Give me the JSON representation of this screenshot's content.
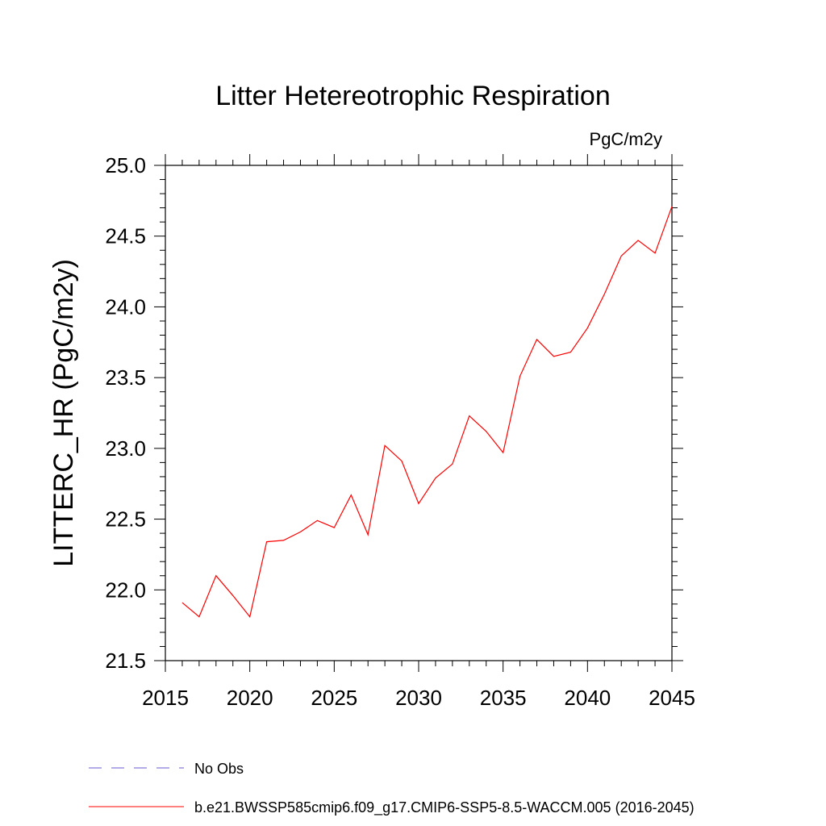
{
  "chart_data": {
    "type": "line",
    "title": "Litter Hetereotrophic Respiration",
    "units_label": "PgC/m2y",
    "ylabel": "LITTERC_HR  (PgC/m2y)",
    "xlabel": "",
    "xlim": [
      2015,
      2045
    ],
    "ylim": [
      21.5,
      25.0
    ],
    "x_ticks": [
      2015,
      2020,
      2025,
      2030,
      2035,
      2040,
      2045
    ],
    "x_tick_labels": [
      "2015",
      "2020",
      "2025",
      "2030",
      "2035",
      "2040",
      "2045"
    ],
    "y_ticks": [
      21.5,
      22.0,
      22.5,
      23.0,
      23.5,
      24.0,
      24.5,
      25.0
    ],
    "y_tick_labels": [
      "21.5",
      "22.0",
      "22.5",
      "23.0",
      "23.5",
      "24.0",
      "24.5",
      "25.0"
    ],
    "grid": false,
    "legend_position": "bottom",
    "series": [
      {
        "name": "b.e21.BWSSP585cmip6.f09_g17.CMIP6-SSP5-8.5-WACCM.005 (2016-2045)",
        "color": "#ff0000",
        "style": "solid",
        "x": [
          2016,
          2017,
          2018,
          2019,
          2020,
          2021,
          2022,
          2023,
          2024,
          2025,
          2026,
          2027,
          2028,
          2029,
          2030,
          2031,
          2032,
          2033,
          2034,
          2035,
          2036,
          2037,
          2038,
          2039,
          2040,
          2041,
          2042,
          2043,
          2044,
          2045
        ],
        "y": [
          21.91,
          21.81,
          22.1,
          21.96,
          21.81,
          22.34,
          22.35,
          22.41,
          22.49,
          22.44,
          22.67,
          22.39,
          23.02,
          22.91,
          22.61,
          22.79,
          22.89,
          23.23,
          23.12,
          22.97,
          23.51,
          23.77,
          23.65,
          23.68,
          23.85,
          24.09,
          24.36,
          24.47,
          24.38,
          24.71
        ]
      }
    ],
    "legend": [
      {
        "label": "No Obs",
        "color": "#6a5acd",
        "style": "dashed"
      },
      {
        "label": "b.e21.BWSSP585cmip6.f09_g17.CMIP6-SSP5-8.5-WACCM.005 (2016-2045)",
        "color": "#ff0000",
        "style": "solid"
      }
    ]
  }
}
